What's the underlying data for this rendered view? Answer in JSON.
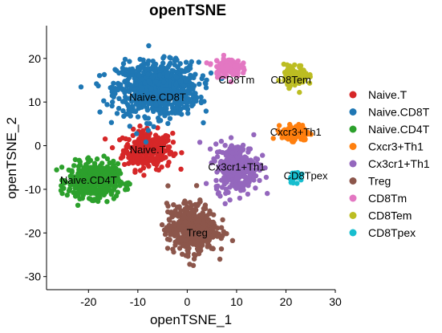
{
  "chart_data": {
    "type": "scatter",
    "title": "openTSNE",
    "xlabel": "openTSNE_1",
    "ylabel": "openTSNE_2",
    "xlim": [
      -28.5,
      30
    ],
    "ylim": [
      -33,
      27.5
    ],
    "xticks": [
      -20,
      -10,
      0,
      10,
      20,
      30
    ],
    "yticks": [
      -30,
      -20,
      -10,
      0,
      10,
      20
    ],
    "grid": false,
    "legend_position": "right",
    "series": [
      {
        "name": "Naive.T",
        "color": "#d62728",
        "centroid": [
          -8,
          -1
        ],
        "spread": [
          4.5,
          4
        ],
        "count": 260
      },
      {
        "name": "Naive.CD8T",
        "color": "#1f77b4",
        "centroid": [
          -6,
          13
        ],
        "spread": [
          7.5,
          5.5
        ],
        "count": 820
      },
      {
        "name": "Naive.CD4T",
        "color": "#2ca02c",
        "centroid": [
          -19,
          -8
        ],
        "spread": [
          4.5,
          3.5
        ],
        "count": 520
      },
      {
        "name": "Cxcr3+Th1",
        "color": "#ff7f0e",
        "centroid": [
          22,
          3
        ],
        "spread": [
          2.5,
          1.6
        ],
        "count": 130
      },
      {
        "name": "Cx3cr1+Th1",
        "color": "#9467bd",
        "centroid": [
          10,
          -5
        ],
        "spread": [
          4,
          5
        ],
        "count": 300
      },
      {
        "name": "Treg",
        "color": "#8c564b",
        "centroid": [
          1,
          -19
        ],
        "spread": [
          4.5,
          5
        ],
        "count": 480
      },
      {
        "name": "CD8Tm",
        "color": "#e377c2",
        "centroid": [
          8,
          18
        ],
        "spread": [
          2.5,
          2
        ],
        "count": 130
      },
      {
        "name": "CD8Tem",
        "color": "#bcbd22",
        "centroid": [
          22,
          16
        ],
        "spread": [
          2.2,
          2.2
        ],
        "count": 120
      },
      {
        "name": "CD8Tpex",
        "color": "#17becf",
        "centroid": [
          22,
          -7
        ],
        "spread": [
          1.3,
          1.1
        ],
        "count": 30
      }
    ],
    "annotations": [
      {
        "text": "Naive.CD8T",
        "x": -6,
        "y": 11
      },
      {
        "text": "Naive.T",
        "x": -8,
        "y": -1
      },
      {
        "text": "Naive.CD4T",
        "x": -20,
        "y": -8
      },
      {
        "text": "Cxcr3+Th1",
        "x": 22,
        "y": 3
      },
      {
        "text": "Cx3cr1+Th1",
        "x": 10,
        "y": -5
      },
      {
        "text": "Treg",
        "x": 2,
        "y": -20
      },
      {
        "text": "CD8Tm",
        "x": 10,
        "y": 15
      },
      {
        "text": "CD8Tem",
        "x": 21,
        "y": 15
      },
      {
        "text": "CD8Tpex",
        "x": 24,
        "y": -7
      }
    ]
  }
}
